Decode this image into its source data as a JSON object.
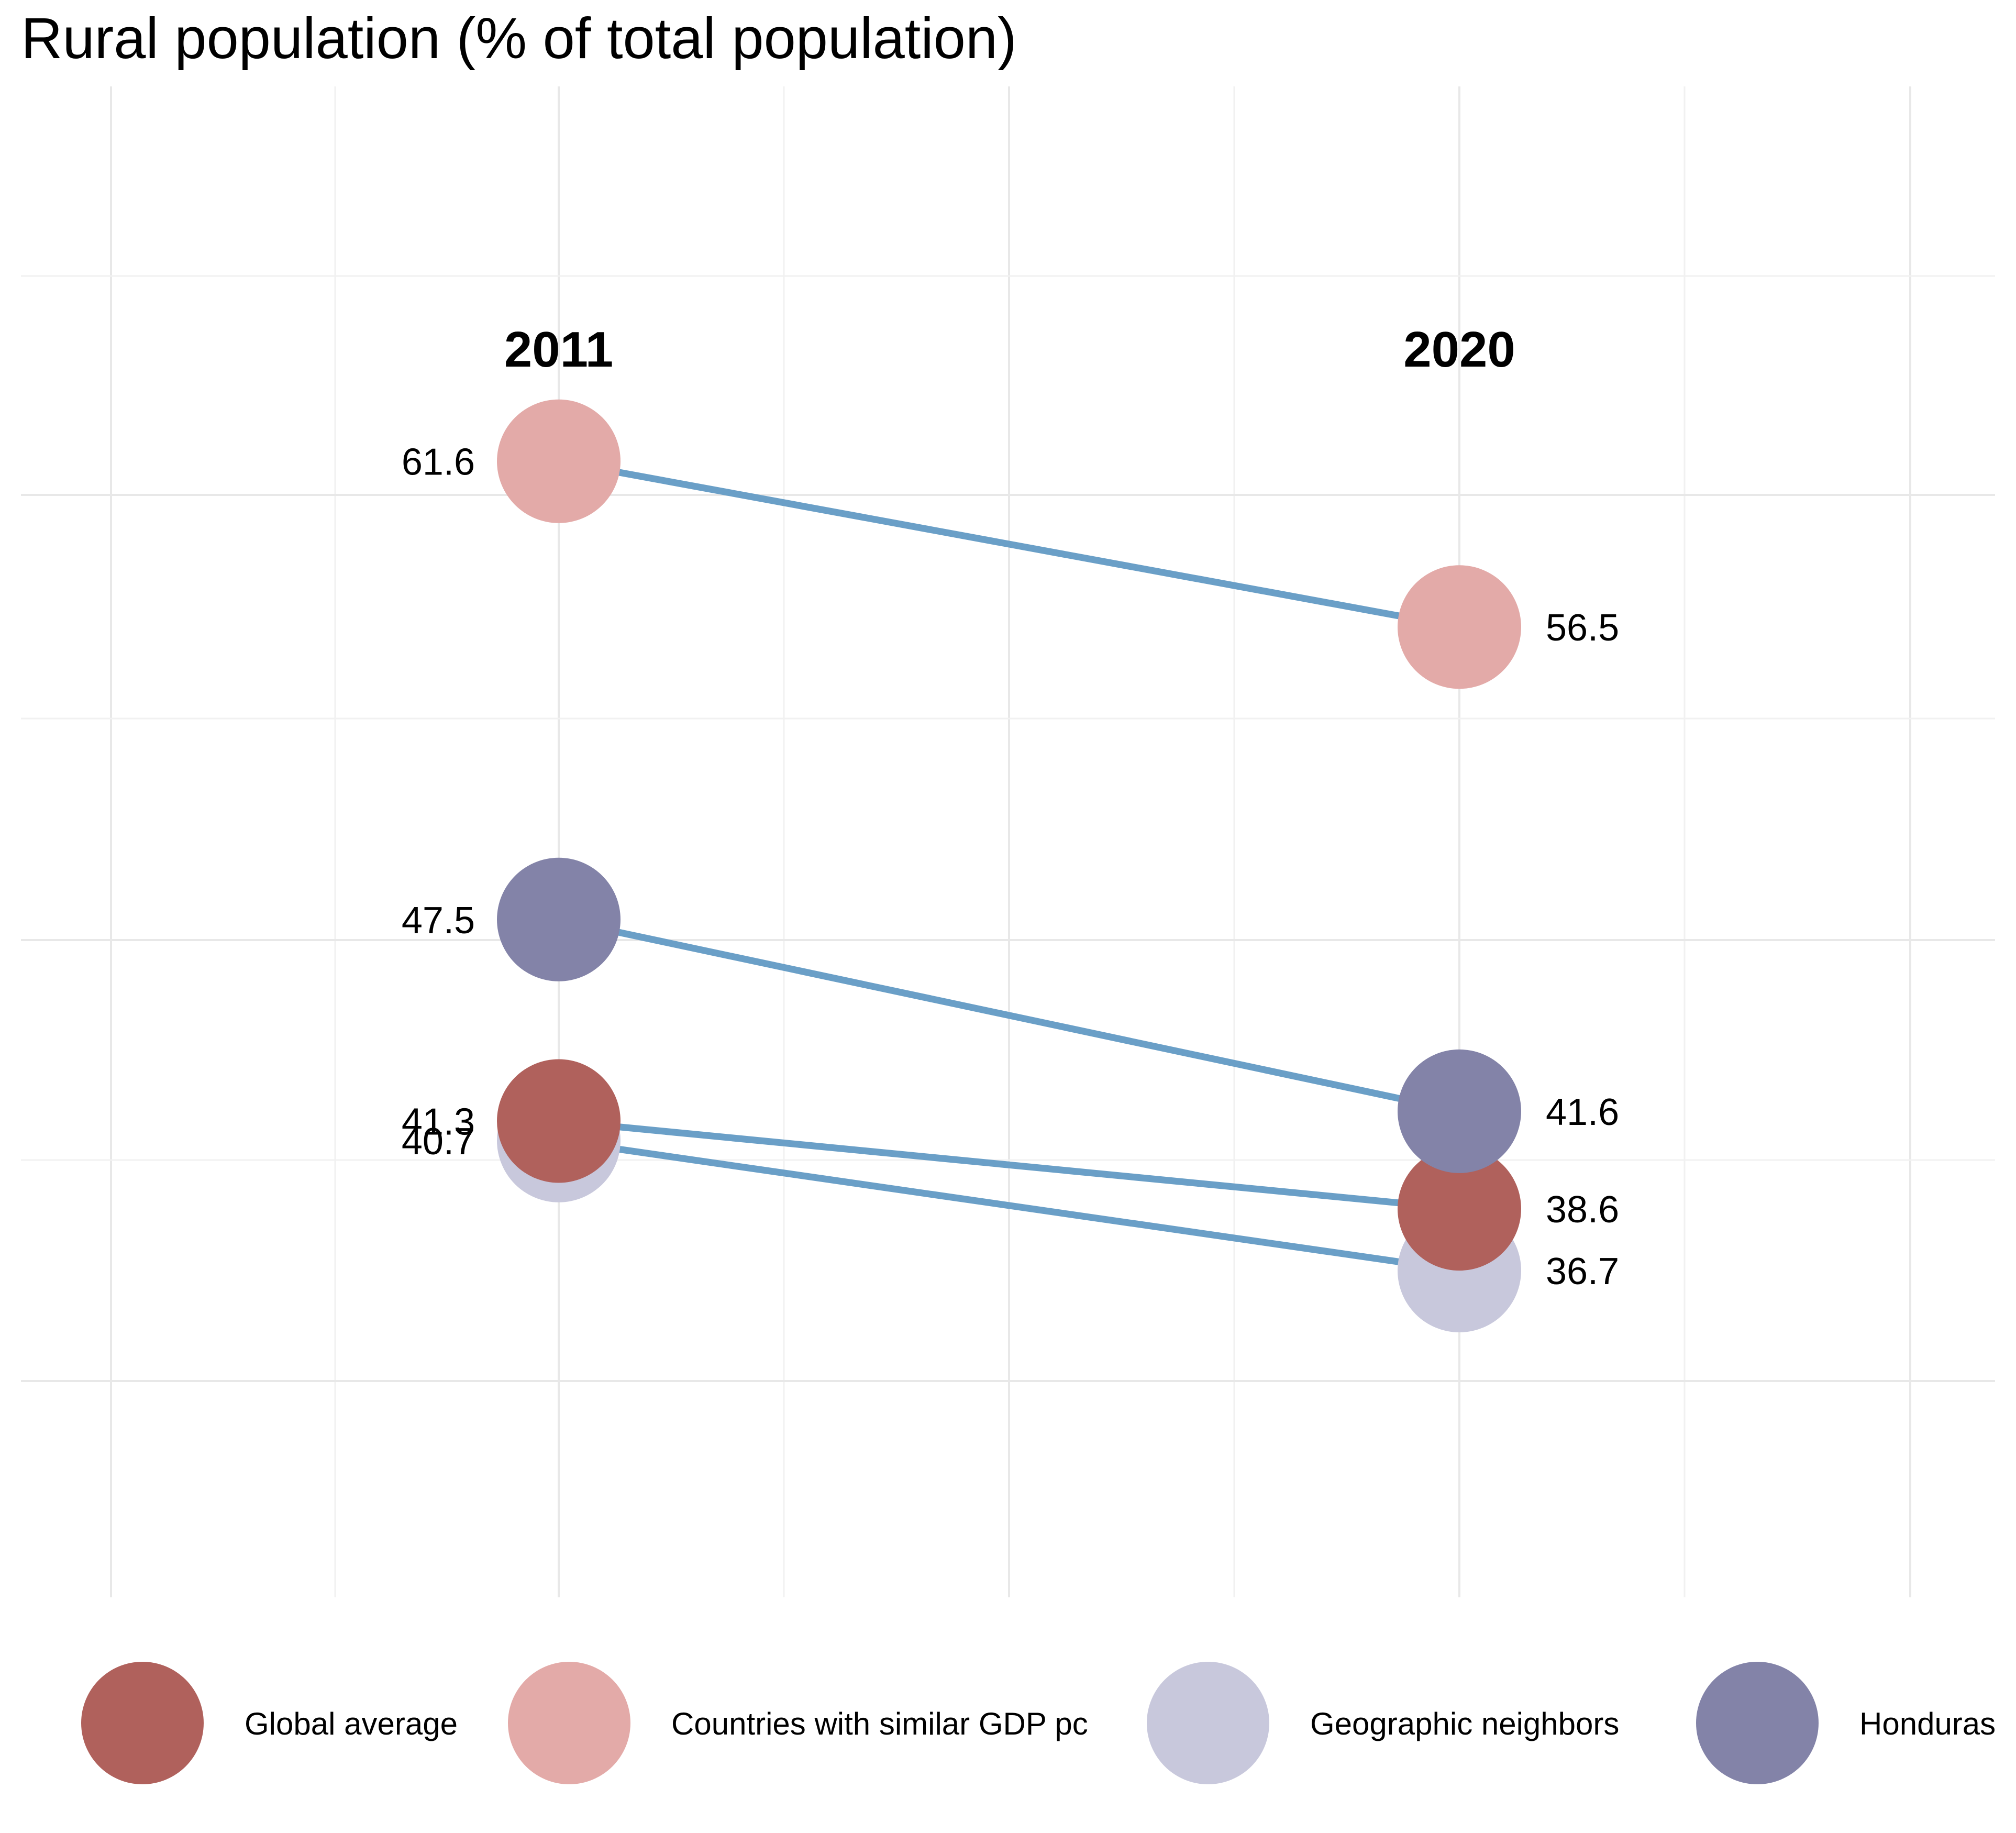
{
  "chart_data": {
    "type": "slope",
    "title": "Rural population (% of total population)",
    "periods": [
      "2011",
      "2020"
    ],
    "series": [
      {
        "name": "Global average",
        "color": "#b0615c",
        "values": [
          41.3,
          38.6
        ],
        "labels": [
          "41.3",
          "38.6"
        ]
      },
      {
        "name": "Countries with similar GDP pc",
        "color": "#e3aaa8",
        "values": [
          61.6,
          56.5
        ],
        "labels": [
          "61.6",
          "56.5"
        ]
      },
      {
        "name": "Geographic neighbors",
        "color": "#c8c8dc",
        "values": [
          40.7,
          36.7
        ],
        "labels": [
          "40.7",
          "36.7"
        ]
      },
      {
        "name": "Honduras",
        "color": "#8383a8",
        "values": [
          47.5,
          41.6
        ],
        "labels": [
          "47.5",
          "41.6"
        ]
      }
    ],
    "draw_order": [
      2,
      0,
      1,
      3
    ],
    "line_color": "#6a9fc7",
    "ylim": [
      33.3,
      67.3
    ],
    "grid": true,
    "legend_position": "bottom"
  }
}
